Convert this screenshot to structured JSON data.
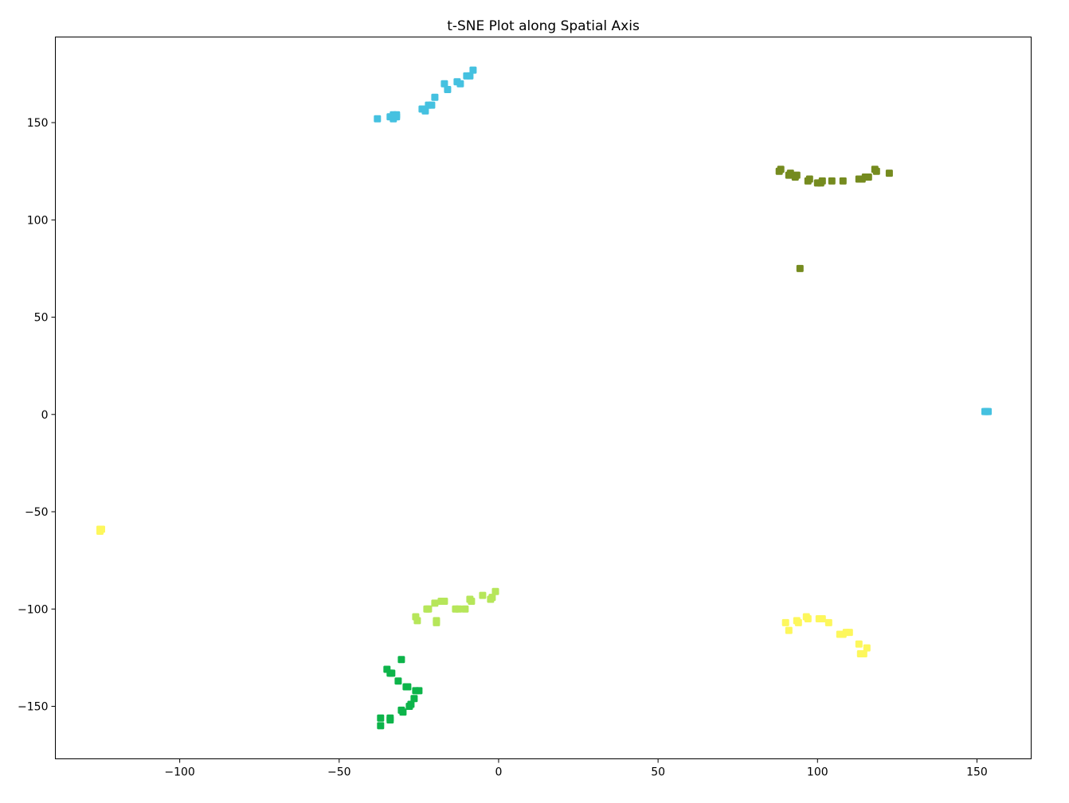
{
  "chart_data": {
    "type": "scatter",
    "title": "t-SNE Plot along Spatial Axis",
    "xlabel": "",
    "ylabel": "",
    "xlim": [
      -139,
      167
    ],
    "ylim": [
      -177,
      194
    ],
    "x_ticks": [
      -100,
      -50,
      0,
      50,
      100,
      150
    ],
    "y_ticks": [
      -150,
      -100,
      -50,
      0,
      50,
      100,
      150
    ],
    "x_tick_labels": [
      "−100",
      "−50",
      "0",
      "50",
      "100",
      "150"
    ],
    "y_tick_labels": [
      "−150",
      "−100",
      "−50",
      "0",
      "50",
      "100",
      "150"
    ],
    "grid": false,
    "legend": "none",
    "marker": "square",
    "series": [
      {
        "color": "#45c1e0",
        "points": [
          [
            -38,
            152
          ],
          [
            -34,
            153
          ],
          [
            -33,
            152
          ],
          [
            -33,
            154
          ],
          [
            -32,
            153
          ],
          [
            -32,
            154
          ],
          [
            -24,
            157
          ],
          [
            -23,
            156
          ],
          [
            -22,
            159
          ],
          [
            -21,
            159
          ],
          [
            -20,
            163
          ],
          [
            -17,
            170
          ],
          [
            -16,
            167
          ],
          [
            -13,
            171
          ],
          [
            -12,
            170
          ],
          [
            -10,
            174
          ],
          [
            -9,
            174
          ],
          [
            -8,
            177
          ],
          [
            153,
            1.5
          ],
          [
            153.5,
            1.5
          ],
          [
            152.5,
            1.5
          ]
        ]
      },
      {
        "color": "#758b1f",
        "points": [
          [
            88,
            125
          ],
          [
            88.5,
            126
          ],
          [
            91,
            123
          ],
          [
            91.5,
            124
          ],
          [
            93,
            122
          ],
          [
            93.5,
            123
          ],
          [
            97,
            120
          ],
          [
            97.5,
            121
          ],
          [
            100,
            119
          ],
          [
            101,
            119
          ],
          [
            101.5,
            120
          ],
          [
            104.5,
            120
          ],
          [
            108,
            120
          ],
          [
            113,
            121
          ],
          [
            114,
            121
          ],
          [
            115,
            122
          ],
          [
            116,
            122
          ],
          [
            118,
            126
          ],
          [
            118.5,
            125
          ],
          [
            122.5,
            124
          ],
          [
            94.5,
            75
          ]
        ]
      },
      {
        "color": "#b6e65a",
        "points": [
          [
            -26,
            -104
          ],
          [
            -25.5,
            -106
          ],
          [
            -22.5,
            -100
          ],
          [
            -22,
            -100
          ],
          [
            -20,
            -97
          ],
          [
            -19.5,
            -107
          ],
          [
            -19.5,
            -106
          ],
          [
            -18,
            -96
          ],
          [
            -17,
            -96
          ],
          [
            -13.5,
            -100
          ],
          [
            -12.5,
            -100
          ],
          [
            -10.5,
            -100
          ],
          [
            -9,
            -95
          ],
          [
            -8.5,
            -96
          ],
          [
            -5,
            -93
          ],
          [
            -2.5,
            -95
          ],
          [
            -2,
            -94
          ],
          [
            -1,
            -91
          ]
        ]
      },
      {
        "color": "#0db44a",
        "points": [
          [
            -30.5,
            -126
          ],
          [
            -35,
            -131
          ],
          [
            -34,
            -133
          ],
          [
            -33.5,
            -133
          ],
          [
            -31.5,
            -137
          ],
          [
            -29,
            -140
          ],
          [
            -28.5,
            -140
          ],
          [
            -26,
            -142
          ],
          [
            -25,
            -142
          ],
          [
            -26.5,
            -146
          ],
          [
            -28,
            -150
          ],
          [
            -27.5,
            -149
          ],
          [
            -30.5,
            -152
          ],
          [
            -30,
            -153
          ],
          [
            -34,
            -156
          ],
          [
            -34,
            -157
          ],
          [
            -37,
            -156
          ],
          [
            -37,
            -160
          ]
        ]
      },
      {
        "color": "#fdf75c",
        "points": [
          [
            -125,
            -59
          ],
          [
            -124.5,
            -59
          ],
          [
            -125,
            -60
          ],
          [
            90,
            -107
          ],
          [
            91,
            -111
          ],
          [
            93.5,
            -106
          ],
          [
            94,
            -107
          ],
          [
            96.5,
            -104
          ],
          [
            97,
            -105
          ],
          [
            100.5,
            -105
          ],
          [
            101.5,
            -105
          ],
          [
            103.5,
            -107
          ],
          [
            107,
            -113
          ],
          [
            108,
            -113
          ],
          [
            109,
            -112
          ],
          [
            110,
            -112
          ],
          [
            113,
            -118
          ],
          [
            113.5,
            -123
          ],
          [
            114.5,
            -123
          ],
          [
            115.5,
            -120
          ]
        ]
      }
    ]
  }
}
